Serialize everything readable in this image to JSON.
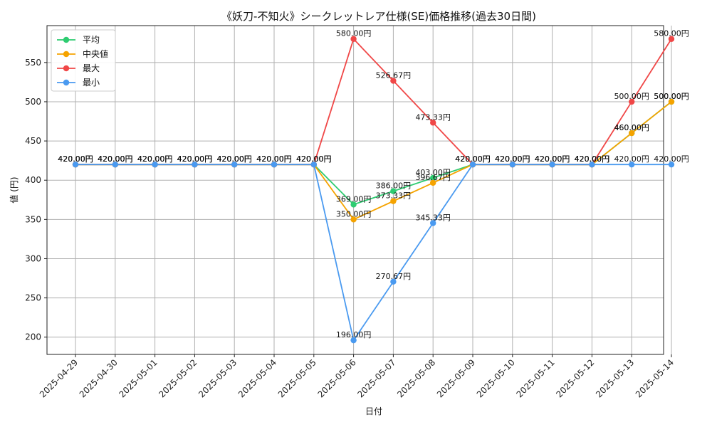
{
  "chart_data": {
    "type": "line",
    "title": "《妖刀-不知火》シークレットレア仕様(SE)価格推移(過去30日間)",
    "xlabel": "日付",
    "ylabel": "値 (円)",
    "ylim": [
      178,
      597
    ],
    "yticks": [
      200,
      250,
      300,
      350,
      400,
      450,
      500,
      550
    ],
    "grid": true,
    "legend_position": "top-left",
    "value_suffix": "円",
    "categories": [
      "2025-04-29",
      "2025-04-30",
      "2025-05-01",
      "2025-05-02",
      "2025-05-03",
      "2025-05-04",
      "2025-05-05",
      "2025-05-06",
      "2025-05-07",
      "2025-05-08",
      "2025-05-09",
      "2025-05-10",
      "2025-05-11",
      "2025-05-12",
      "2025-05-13",
      "2025-05-14"
    ],
    "series": [
      {
        "name": "平均",
        "color": "#2ecc71",
        "values": [
          420,
          420,
          420,
          420,
          420,
          420,
          420,
          369,
          386,
          403,
          420,
          420,
          420,
          420,
          460,
          500
        ],
        "labels": [
          "420.00円",
          "420.00円",
          "420.00円",
          "420.00円",
          "420.00円",
          "420.00円",
          "420.00円",
          "369.00円",
          "386.00円",
          "403.00円",
          "420.00円",
          "420.00円",
          "420.00円",
          "420.00円",
          "460.00円",
          "500.00円"
        ]
      },
      {
        "name": "中央値",
        "color": "#f5a300",
        "values": [
          420,
          420,
          420,
          420,
          420,
          420,
          420,
          350,
          373.33,
          396.67,
          420,
          420,
          420,
          420,
          460,
          500
        ],
        "labels": [
          "420.00円",
          "420.00円",
          "420.00円",
          "420.00円",
          "420.00円",
          "420.00円",
          "420.00円",
          "350.00円",
          "373.33円",
          "396.67円",
          "420.00円",
          "420.00円",
          "420.00円",
          "420.00円",
          "460.00円",
          "500.00円"
        ]
      },
      {
        "name": "最大",
        "color": "#f04747",
        "values": [
          420,
          420,
          420,
          420,
          420,
          420,
          420,
          580,
          526.67,
          473.33,
          420,
          420,
          420,
          420,
          500,
          580
        ],
        "labels": [
          "420.00円",
          "420.00円",
          "420.00円",
          "420.00円",
          "420.00円",
          "420.00円",
          "420.00円",
          "580.00円",
          "526.67円",
          "473.33円",
          "420.00円",
          "420.00円",
          "420.00円",
          "420.00円",
          "500.00円",
          "580.00円"
        ]
      },
      {
        "name": "最小",
        "color": "#4a9af0",
        "values": [
          420,
          420,
          420,
          420,
          420,
          420,
          420,
          196,
          270.67,
          345.33,
          420,
          420,
          420,
          420,
          420,
          420
        ],
        "labels": [
          "420.00円",
          "420.00円",
          "420.00円",
          "420.00円",
          "420.00円",
          "420.00円",
          "420.00円",
          "196.00円",
          "270.67円",
          "345.33円",
          "420.00円",
          "420.00円",
          "420.00円",
          "420.00円",
          "420.00円",
          "420.00円"
        ]
      }
    ]
  }
}
